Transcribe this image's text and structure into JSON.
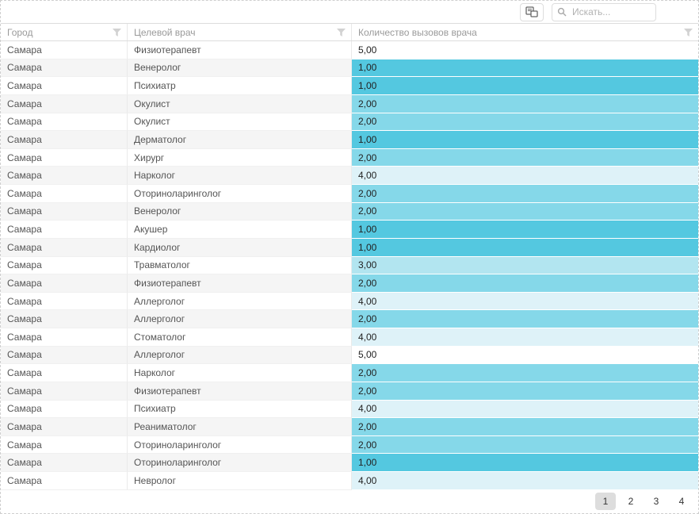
{
  "toolbar": {
    "export_icon": "copy-export-icon",
    "search": {
      "placeholder": "Искать...",
      "icon": "magnifier-icon"
    }
  },
  "grid": {
    "columns": [
      {
        "label": "Город",
        "filter_icon": "funnel-icon"
      },
      {
        "label": "Целевой врач",
        "filter_icon": "funnel-icon"
      },
      {
        "label": "Количество вызовов врача",
        "filter_icon": "funnel-icon"
      }
    ],
    "value_colors": {
      "1,00": "#54c8e0",
      "2,00": "#85d8e9",
      "3,00": "#b2e5f0",
      "4,00": "#def2f8",
      "5,00": "#ffffff"
    },
    "rows": [
      {
        "city": "Самара",
        "doctor": "Физиотерапевт",
        "value": "5,00"
      },
      {
        "city": "Самара",
        "doctor": "Венеролог",
        "value": "1,00"
      },
      {
        "city": "Самара",
        "doctor": "Психиатр",
        "value": "1,00"
      },
      {
        "city": "Самара",
        "doctor": "Окулист",
        "value": "2,00"
      },
      {
        "city": "Самара",
        "doctor": "Окулист",
        "value": "2,00"
      },
      {
        "city": "Самара",
        "doctor": "Дерматолог",
        "value": "1,00"
      },
      {
        "city": "Самара",
        "doctor": "Хирург",
        "value": "2,00"
      },
      {
        "city": "Самара",
        "doctor": "Нарколог",
        "value": "4,00"
      },
      {
        "city": "Самара",
        "doctor": "Оториноларинголог",
        "value": "2,00"
      },
      {
        "city": "Самара",
        "doctor": "Венеролог",
        "value": "2,00"
      },
      {
        "city": "Самара",
        "doctor": "Акушер",
        "value": "1,00"
      },
      {
        "city": "Самара",
        "doctor": "Кардиолог",
        "value": "1,00"
      },
      {
        "city": "Самара",
        "doctor": "Травматолог",
        "value": "3,00"
      },
      {
        "city": "Самара",
        "doctor": "Физиотерапевт",
        "value": "2,00"
      },
      {
        "city": "Самара",
        "doctor": "Аллерголог",
        "value": "4,00"
      },
      {
        "city": "Самара",
        "doctor": "Аллерголог",
        "value": "2,00"
      },
      {
        "city": "Самара",
        "doctor": "Стоматолог",
        "value": "4,00"
      },
      {
        "city": "Самара",
        "doctor": "Аллерголог",
        "value": "5,00"
      },
      {
        "city": "Самара",
        "doctor": "Нарколог",
        "value": "2,00"
      },
      {
        "city": "Самара",
        "doctor": "Физиотерапевт",
        "value": "2,00"
      },
      {
        "city": "Самара",
        "doctor": "Психиатр",
        "value": "4,00"
      },
      {
        "city": "Самара",
        "doctor": "Реаниматолог",
        "value": "2,00"
      },
      {
        "city": "Самара",
        "doctor": "Оториноларинголог",
        "value": "2,00"
      },
      {
        "city": "Самара",
        "doctor": "Оториноларинголог",
        "value": "1,00"
      },
      {
        "city": "Самара",
        "doctor": "Невролог",
        "value": "4,00"
      }
    ]
  },
  "pager": {
    "pages": [
      "1",
      "2",
      "3",
      "4"
    ],
    "current": "1"
  }
}
